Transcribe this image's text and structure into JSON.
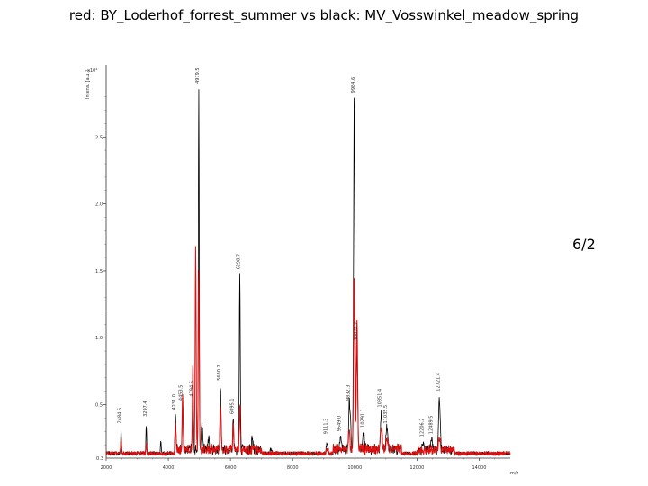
{
  "slide": {
    "title": "red: BY_Loderhof_forrest_summer vs black: MV_Vosswinkel_meadow_spring",
    "badge": "6/2"
  },
  "chart_data": {
    "type": "line",
    "ylabel": "Intens. [a.u.]",
    "y_exponent": "x10⁴",
    "xlabel": "m/z",
    "xlim": [
      2000,
      15000
    ],
    "ylim": [
      0.1,
      3.0
    ],
    "x_ticks": [
      "2000",
      "4000",
      "6000",
      "8000",
      "10000",
      "12000",
      "14000"
    ],
    "y_ticks": [
      "0.5",
      "1.0",
      "1.5",
      "2.0",
      "2.5"
    ],
    "series": [
      {
        "color": "#000000",
        "peaks": [
          {
            "x": 2480,
            "y": 0.28,
            "w": 18
          },
          {
            "x": 3290,
            "y": 0.33,
            "w": 18
          },
          {
            "x": 3760,
            "y": 0.22,
            "w": 18
          },
          {
            "x": 4230,
            "y": 0.38,
            "w": 20
          },
          {
            "x": 4460,
            "y": 0.45,
            "w": 22
          },
          {
            "x": 4790,
            "y": 0.48,
            "w": 22
          },
          {
            "x": 4980,
            "y": 2.82,
            "w": 20
          },
          {
            "x": 5080,
            "y": 0.32,
            "w": 30
          },
          {
            "x": 5300,
            "y": 0.22,
            "w": 30
          },
          {
            "x": 5680,
            "y": 0.6,
            "w": 24
          },
          {
            "x": 6090,
            "y": 0.35,
            "w": 24
          },
          {
            "x": 6300,
            "y": 1.43,
            "w": 22
          },
          {
            "x": 6700,
            "y": 0.2,
            "w": 30
          },
          {
            "x": 7300,
            "y": 0.15,
            "w": 40
          },
          {
            "x": 9110,
            "y": 0.2,
            "w": 40
          },
          {
            "x": 9540,
            "y": 0.22,
            "w": 40
          },
          {
            "x": 9820,
            "y": 0.45,
            "w": 26
          },
          {
            "x": 9860,
            "y": 0.33,
            "w": 26
          },
          {
            "x": 9980,
            "y": 2.75,
            "w": 28
          },
          {
            "x": 10070,
            "y": 0.9,
            "w": 30
          },
          {
            "x": 10280,
            "y": 0.25,
            "w": 40
          },
          {
            "x": 10850,
            "y": 0.4,
            "w": 35
          },
          {
            "x": 11030,
            "y": 0.28,
            "w": 40
          },
          {
            "x": 12200,
            "y": 0.18,
            "w": 40
          },
          {
            "x": 12470,
            "y": 0.2,
            "w": 40
          },
          {
            "x": 12720,
            "y": 0.52,
            "w": 36
          }
        ]
      },
      {
        "color": "#dd1111",
        "peaks": [
          {
            "x": 2480,
            "y": 0.22,
            "w": 18
          },
          {
            "x": 3290,
            "y": 0.2,
            "w": 18
          },
          {
            "x": 4230,
            "y": 0.3,
            "w": 20
          },
          {
            "x": 4460,
            "y": 0.55,
            "w": 22
          },
          {
            "x": 4790,
            "y": 0.75,
            "w": 22
          },
          {
            "x": 4880,
            "y": 1.6,
            "w": 22
          },
          {
            "x": 4980,
            "y": 1.48,
            "w": 22
          },
          {
            "x": 5680,
            "y": 0.45,
            "w": 24
          },
          {
            "x": 6090,
            "y": 0.28,
            "w": 24
          },
          {
            "x": 6300,
            "y": 0.48,
            "w": 22
          },
          {
            "x": 9110,
            "y": 0.15,
            "w": 40
          },
          {
            "x": 9820,
            "y": 0.28,
            "w": 26
          },
          {
            "x": 9980,
            "y": 1.43,
            "w": 28
          },
          {
            "x": 10070,
            "y": 1.05,
            "w": 30
          },
          {
            "x": 10850,
            "y": 0.28,
            "w": 35
          },
          {
            "x": 11030,
            "y": 0.2,
            "w": 40
          },
          {
            "x": 12720,
            "y": 0.22,
            "w": 36
          }
        ]
      }
    ],
    "annotations": [
      "2484.5",
      "3297.4",
      "4231.0",
      "4453.5",
      "4794.5",
      "4979.5",
      "5680.2",
      "6095.1",
      "6298.7",
      "9111.3",
      "9549.0",
      "9832.3",
      "9984.6",
      "10072.2",
      "10291.1",
      "10851.4",
      "11035.5",
      "12206.2",
      "12489.5",
      "12721.4"
    ]
  }
}
